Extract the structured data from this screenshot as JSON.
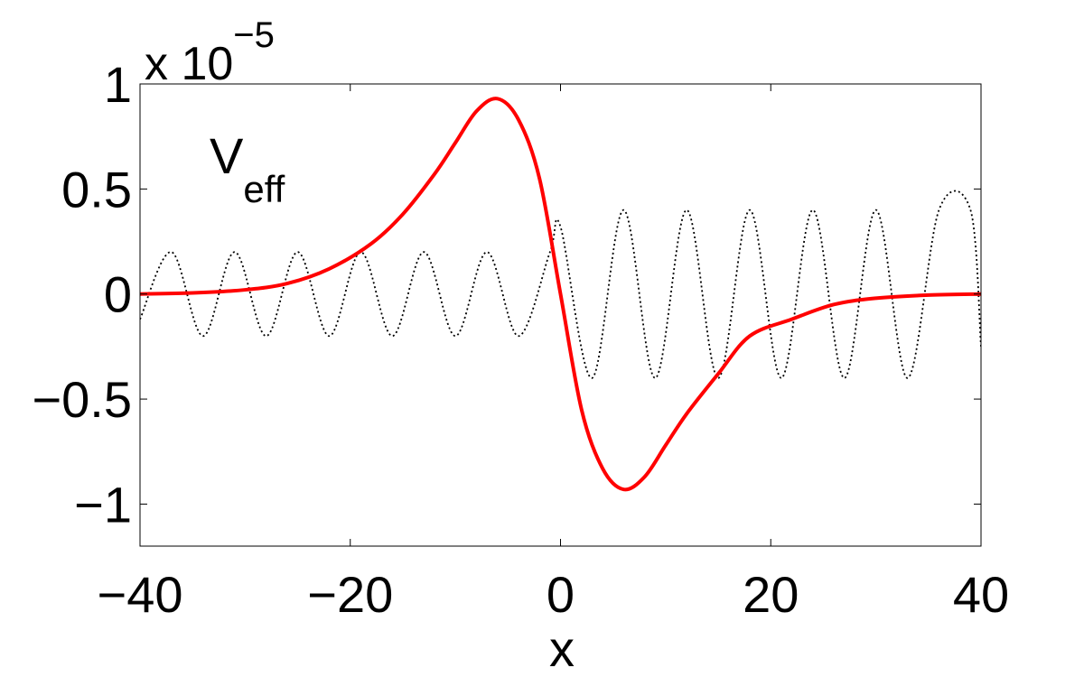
{
  "chart_data": {
    "type": "line",
    "xlabel": "x",
    "ylabel": "",
    "xlim": [
      -40,
      40
    ],
    "ylim": [
      -1.2,
      1.0
    ],
    "exponent_label": {
      "base": "x 10",
      "power": "−5"
    },
    "annotation": {
      "main": "V",
      "sub": "eff"
    },
    "x_ticks": [
      -40,
      -20,
      0,
      20,
      40
    ],
    "x_tick_labels": [
      "−40",
      "−20",
      "0",
      "20",
      "40"
    ],
    "y_ticks": [
      -1,
      -0.5,
      0,
      0.5,
      1
    ],
    "y_tick_labels": [
      "−1",
      "−0.5",
      "0",
      "0.5",
      "1"
    ],
    "grid": false,
    "series": [
      {
        "style": "solid",
        "color": "#ff0000",
        "x": [
          -40,
          -35,
          -30,
          -26,
          -22,
          -18,
          -15,
          -12,
          -10,
          -8,
          -6,
          -4,
          -2,
          0,
          2,
          4,
          6,
          8,
          10,
          12,
          15,
          18,
          22,
          26,
          30,
          35,
          40
        ],
        "values": [
          0.0,
          0.005,
          0.02,
          0.05,
          0.12,
          0.24,
          0.38,
          0.57,
          0.72,
          0.87,
          0.93,
          0.83,
          0.55,
          0.0,
          -0.55,
          -0.83,
          -0.93,
          -0.87,
          -0.72,
          -0.57,
          -0.38,
          -0.2,
          -0.12,
          -0.05,
          -0.02,
          -0.005,
          0.0
        ]
      },
      {
        "style": "dotted",
        "color": "#000000",
        "x": [
          -40,
          -37,
          -34,
          -31,
          -28,
          -25,
          -22,
          -19,
          -16,
          -13,
          -10,
          -7,
          -4,
          -1,
          0,
          3,
          6,
          9,
          12,
          15,
          18,
          21,
          24,
          27,
          30,
          33,
          36,
          39,
          40
        ],
        "values": [
          -0.12,
          0.2,
          -0.2,
          0.2,
          -0.2,
          0.2,
          -0.2,
          0.2,
          -0.2,
          0.2,
          -0.2,
          0.2,
          -0.2,
          0.2,
          0.32,
          -0.4,
          0.4,
          -0.4,
          0.4,
          -0.4,
          0.4,
          -0.4,
          0.4,
          -0.4,
          0.4,
          -0.4,
          0.4,
          0.4,
          -0.25
        ]
      }
    ]
  }
}
